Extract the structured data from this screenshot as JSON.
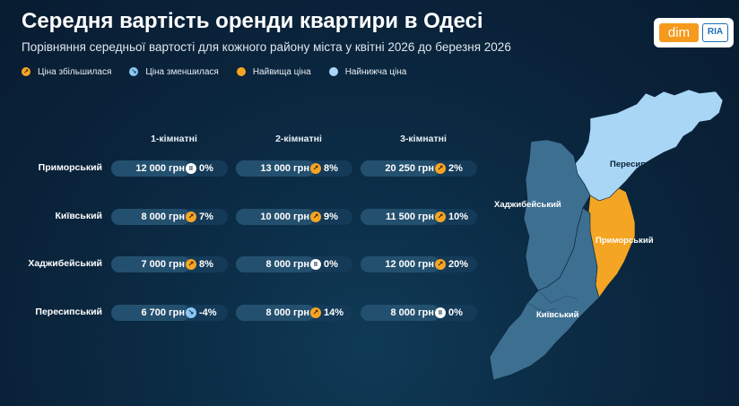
{
  "header": {
    "title": "Середня вартість оренди квартири в Одесі",
    "subtitle": "Порівняння середньої вартості для кожного району міста у квітні 2026 до березня 2026"
  },
  "legend": {
    "items": [
      {
        "label": "Ціна збільшилася",
        "kind": "up"
      },
      {
        "label": "Ціна зменшилася",
        "kind": "down"
      },
      {
        "label": "Найвища ціна",
        "kind": "max"
      },
      {
        "label": "Найнижча ціна",
        "kind": "min"
      }
    ]
  },
  "logo": {
    "dim": "dim",
    "ria": "RIA"
  },
  "table": {
    "columns": [
      "1-кімнатні",
      "2-кімнатні",
      "3-кімнатні"
    ],
    "rows": [
      {
        "district": "Приморський",
        "cells": [
          {
            "price": "12 000 грн",
            "trend": "same",
            "change": "0%"
          },
          {
            "price": "13 000 грн",
            "trend": "up",
            "change": "8%"
          },
          {
            "price": "20 250 грн",
            "trend": "up",
            "change": "2%"
          }
        ]
      },
      {
        "district": "Київський",
        "cells": [
          {
            "price": "8 000 грн",
            "trend": "up",
            "change": "7%"
          },
          {
            "price": "10 000 грн",
            "trend": "up",
            "change": "9%"
          },
          {
            "price": "11 500 грн",
            "trend": "up",
            "change": "10%"
          }
        ]
      },
      {
        "district": "Хаджибейський",
        "cells": [
          {
            "price": "7 000 грн",
            "trend": "up",
            "change": "8%"
          },
          {
            "price": "8 000 грн",
            "trend": "same",
            "change": "0%"
          },
          {
            "price": "12 000 грн",
            "trend": "up",
            "change": "20%"
          }
        ]
      },
      {
        "district": "Пересипський",
        "cells": [
          {
            "price": "6 700 грн",
            "trend": "down",
            "change": "-4%"
          },
          {
            "price": "8 000 грн",
            "trend": "up",
            "change": "14%"
          },
          {
            "price": "8 000 грн",
            "trend": "same",
            "change": "0%"
          }
        ]
      }
    ]
  },
  "map": {
    "labels": {
      "peresypskyi": "Пересипський",
      "khadzhybeiskyi": "Хаджибейський",
      "prymorskyi": "Приморський",
      "kyivskyi": "Київський"
    },
    "colors": {
      "highest": "#f5a524",
      "lowest": "#a9d6f5",
      "other": "#3d6f91"
    }
  },
  "icons": {
    "up": "arrow-up-right-icon",
    "down": "arrow-down-right-icon",
    "same": "pause-icon"
  }
}
